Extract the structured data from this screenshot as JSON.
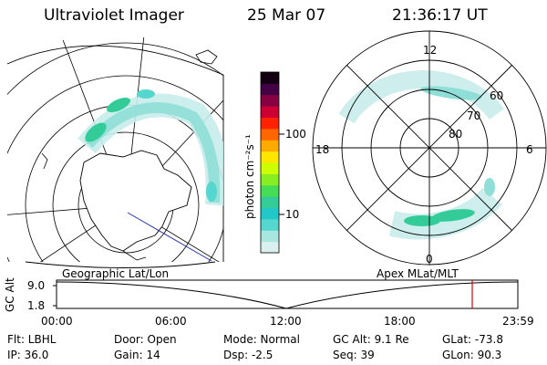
{
  "header": {
    "instrument": "Ultraviolet Imager",
    "date": "25 Mar 07",
    "time": "21:36:17 UT"
  },
  "geo_map": {
    "label": "Geographic Lat/Lon"
  },
  "polar_plot": {
    "label": "Apex MLat/MLT",
    "mlt_labels": [
      "12",
      "18",
      "6",
      "0"
    ],
    "lat_labels": [
      "60",
      "70",
      "80"
    ]
  },
  "colorbar": {
    "unit_label": "photon cm⁻²s⁻¹",
    "ticks": [
      "100",
      "10"
    ],
    "colors": [
      "#d9f0ee",
      "#a8e6e0",
      "#55d6cf",
      "#22c7c7",
      "#33cc99",
      "#44dd55",
      "#88ee22",
      "#ccff00",
      "#ffe600",
      "#ffaa00",
      "#ff6600",
      "#ff2200",
      "#cc0033",
      "#880044",
      "#440044",
      "#120012"
    ]
  },
  "altitude_plot": {
    "ylabel": "GC Alt",
    "yticks": [
      "9.0",
      "1.8"
    ],
    "xticks": [
      "00:00",
      "06:00",
      "12:00",
      "18:00",
      "23:59"
    ],
    "marker_time": "21:36"
  },
  "info": {
    "flt": "Flt: LBHL",
    "ip": "IP: 36.0",
    "door": "Door: Open",
    "gain": "Gain: 14",
    "mode": "Mode: Normal",
    "dsp": "Dsp:    -2.5",
    "gc_alt": "GC Alt: 9.1 Re",
    "seq": "Seq: 39",
    "glat": "GLat:  -73.8",
    "glon": "GLon:   90.3"
  }
}
